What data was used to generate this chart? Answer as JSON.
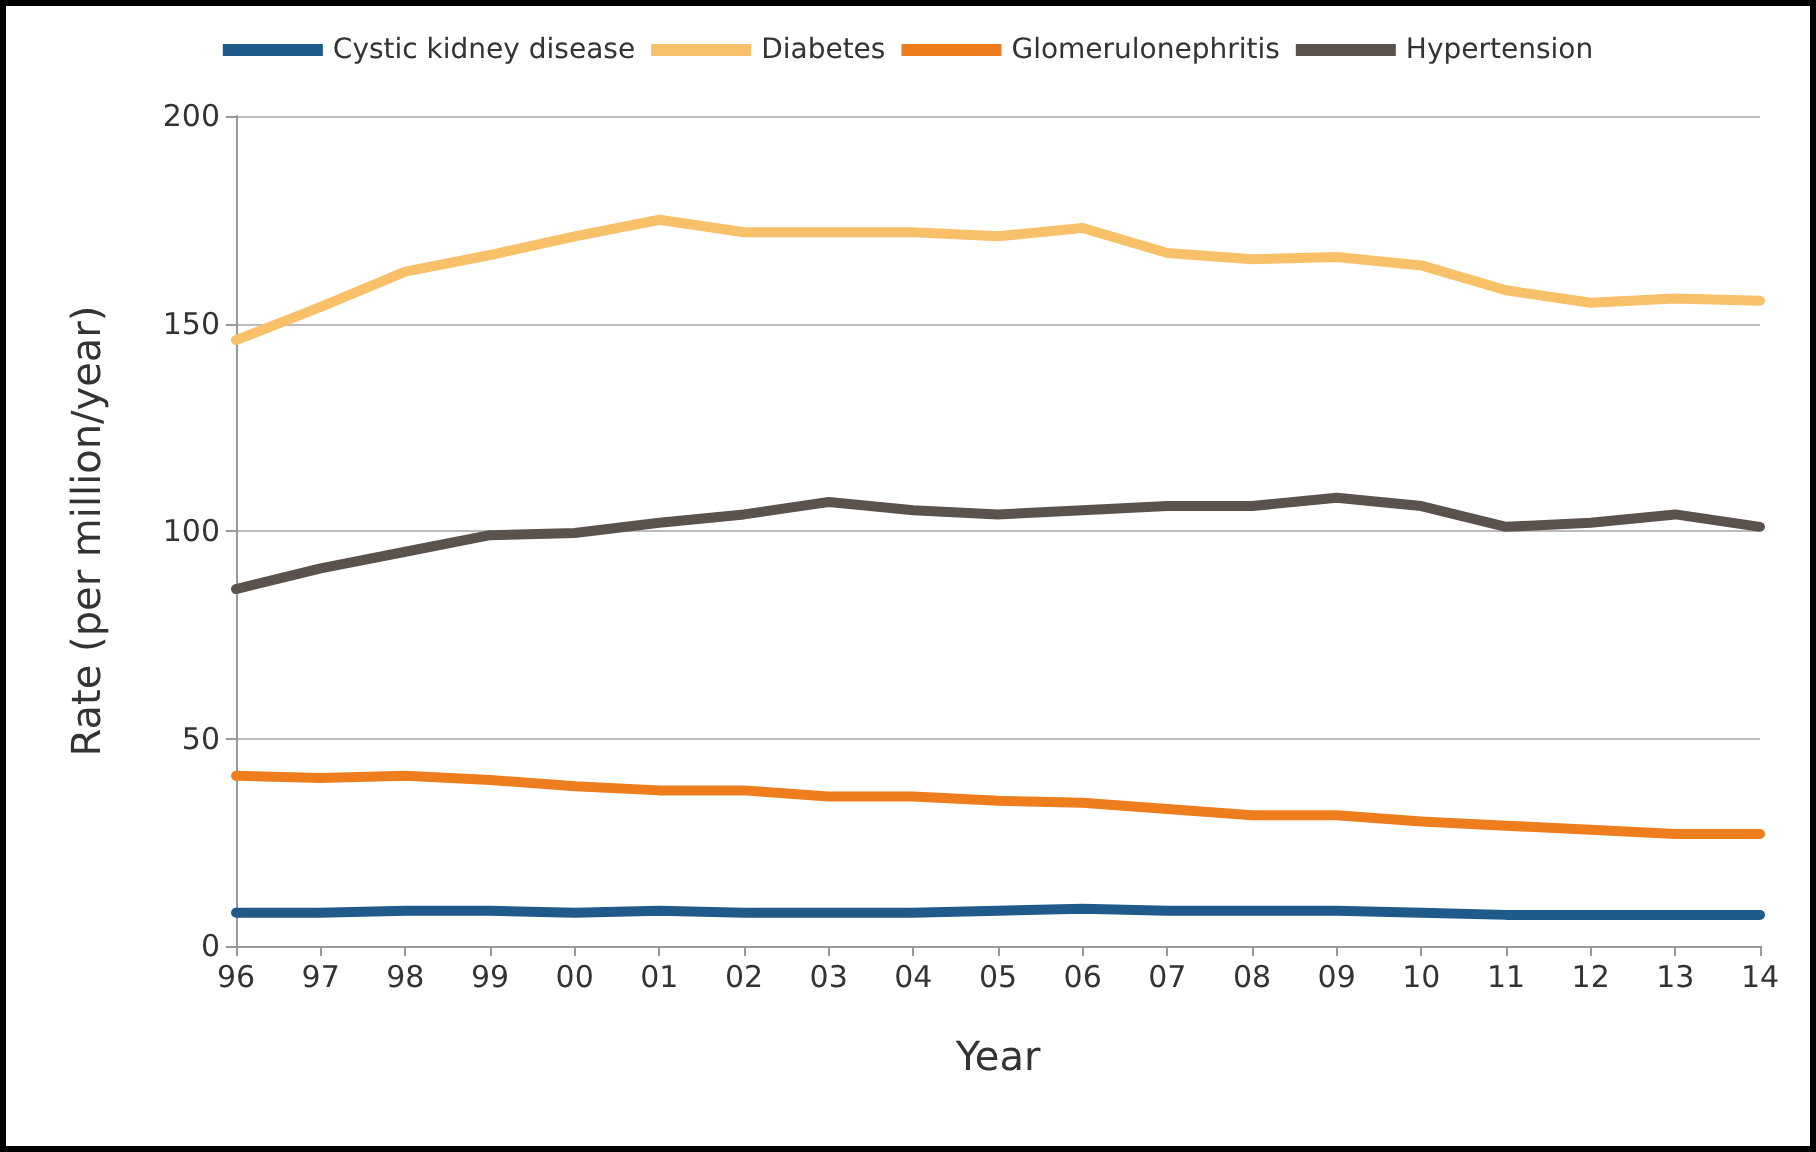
{
  "chart_data": {
    "type": "line",
    "xlabel": "Year",
    "ylabel": "Rate (per million/year)",
    "categories": [
      "96",
      "97",
      "98",
      "99",
      "00",
      "01",
      "02",
      "03",
      "04",
      "05",
      "06",
      "07",
      "08",
      "09",
      "10",
      "11",
      "12",
      "13",
      "14"
    ],
    "series": [
      {
        "name": "Cystic kidney disease",
        "color": "#1f5a8a",
        "values": [
          8,
          8,
          8.5,
          8.5,
          8,
          8.5,
          8,
          8,
          8,
          8.5,
          9,
          8.5,
          8.5,
          8.5,
          8,
          7.5,
          7.5,
          7.5,
          7.5
        ]
      },
      {
        "name": "Diabetes",
        "color": "#f9c06a",
        "values": [
          146,
          154,
          162.5,
          166.5,
          171,
          175,
          172,
          172,
          172,
          171,
          173,
          167,
          165.5,
          166,
          164,
          158,
          155,
          156,
          155.5
        ]
      },
      {
        "name": "Glomerulonephritis",
        "color": "#ee7d1d",
        "values": [
          41,
          40.5,
          41,
          40,
          38.5,
          37.5,
          37.5,
          36,
          36,
          35,
          34.5,
          33,
          31.5,
          31.5,
          30,
          29,
          28,
          27,
          27
        ]
      },
      {
        "name": "Hypertension",
        "color": "#5c524d",
        "values": [
          86,
          91,
          95,
          99,
          99.5,
          102,
          104,
          107,
          105,
          104,
          105,
          106,
          106,
          108,
          106,
          101,
          102,
          104,
          101
        ]
      }
    ],
    "ylim": [
      0,
      200
    ],
    "yticks": [
      0,
      50,
      100,
      150,
      200
    ],
    "grid": "y",
    "legend": "top",
    "marker": "none",
    "line_style": "solid"
  }
}
